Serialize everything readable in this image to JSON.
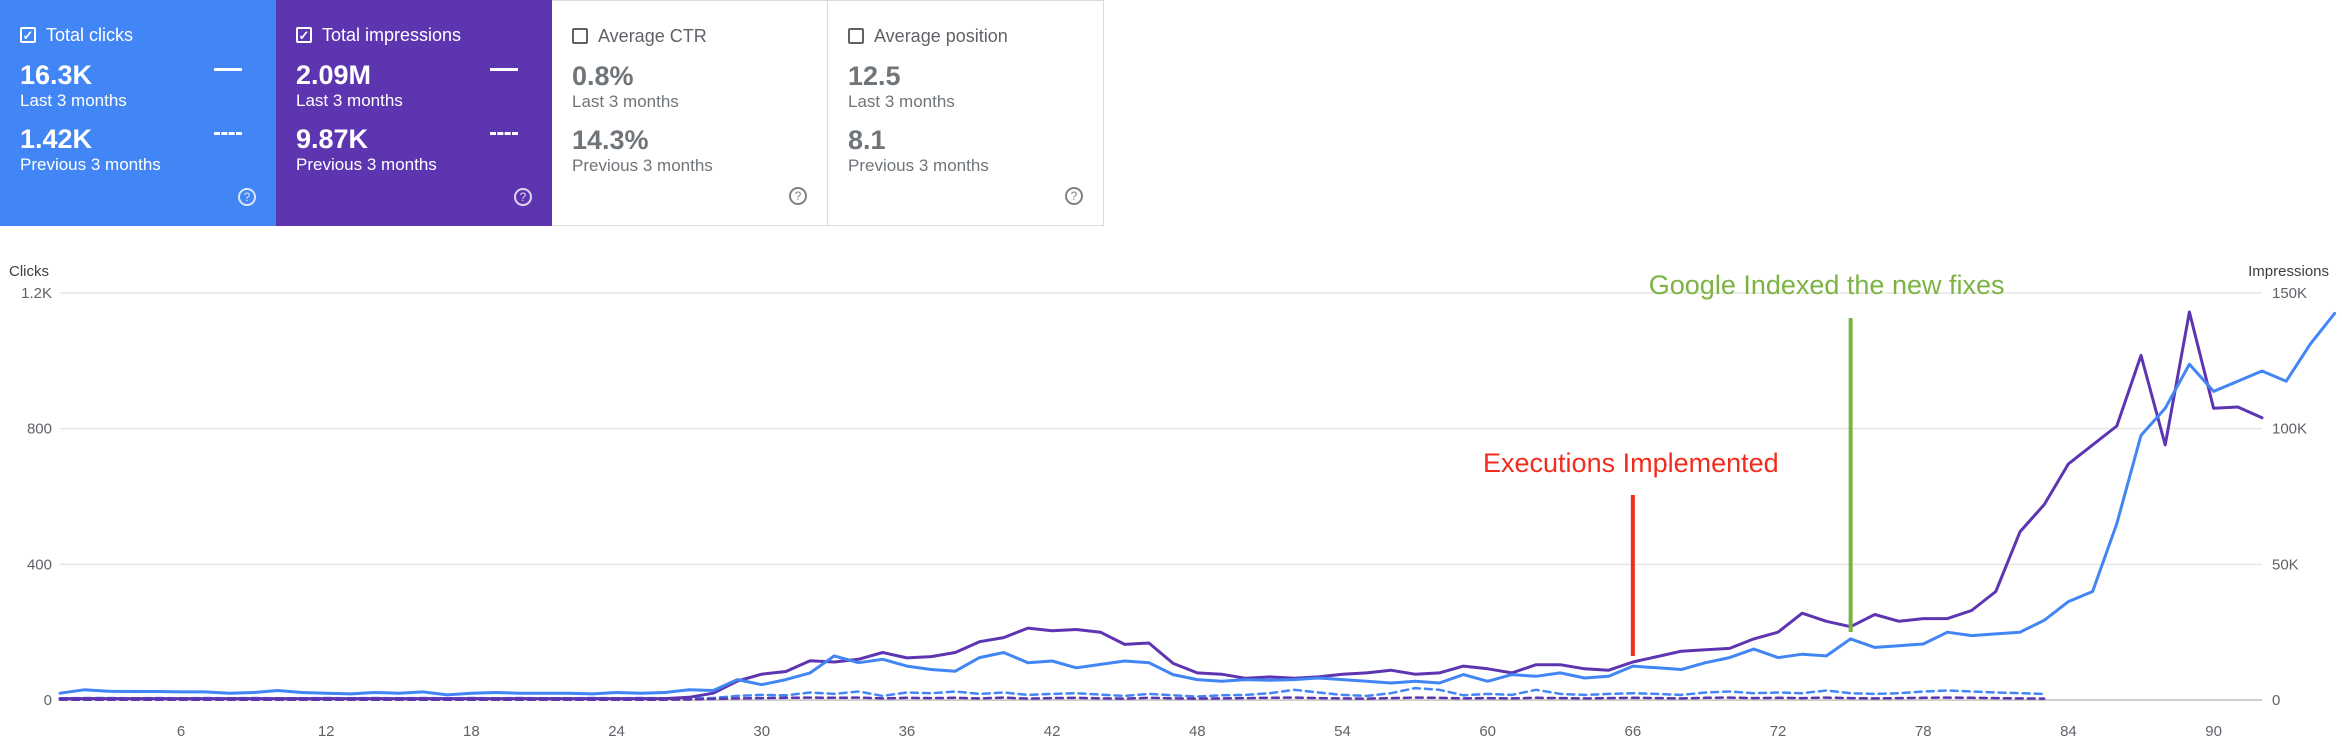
{
  "cards": [
    {
      "label": "Total clicks",
      "checked": true,
      "val1": "16.3K",
      "sub1": "Last 3 months",
      "val2": "1.42K",
      "sub2": "Previous 3 months",
      "color": "#4285f4"
    },
    {
      "label": "Total impressions",
      "checked": true,
      "val1": "2.09M",
      "sub1": "Last 3 months",
      "val2": "9.87K",
      "sub2": "Previous 3 months",
      "color": "#5e35b1"
    },
    {
      "label": "Average CTR",
      "checked": false,
      "val1": "0.8%",
      "sub1": "Last 3 months",
      "val2": "14.3%",
      "sub2": "Previous 3 months"
    },
    {
      "label": "Average position",
      "checked": false,
      "val1": "12.5",
      "sub1": "Last 3 months",
      "val2": "8.1",
      "sub2": "Previous 3 months"
    }
  ],
  "chart_data": {
    "type": "line",
    "left_axis_title": "Clicks",
    "right_axis_title": "Impressions",
    "left_ticks": [
      "0",
      "400",
      "800",
      "1.2K"
    ],
    "right_ticks": [
      "0",
      "50K",
      "100K",
      "150K"
    ],
    "ylim_left": [
      0,
      1200
    ],
    "ylim_right": [
      0,
      150000
    ],
    "x_ticks": [
      "6",
      "12",
      "18",
      "24",
      "30",
      "36",
      "42",
      "48",
      "54",
      "60",
      "66",
      "72",
      "78",
      "84",
      "90"
    ],
    "xlim": [
      1,
      92
    ],
    "grid": true,
    "series": [
      {
        "name": "Total clicks",
        "color": "#4285f4",
        "style": "solid",
        "axis": "left",
        "values": [
          20,
          30,
          26,
          25,
          25,
          24,
          24,
          20,
          22,
          28,
          22,
          20,
          18,
          22,
          20,
          24,
          15,
          20,
          22,
          20,
          20,
          20,
          18,
          22,
          20,
          22,
          30,
          28,
          60,
          45,
          60,
          80,
          130,
          110,
          120,
          100,
          90,
          85,
          125,
          140,
          110,
          115,
          95,
          105,
          115,
          110,
          75,
          60,
          55,
          60,
          58,
          60,
          65,
          60,
          55,
          50,
          55,
          50,
          75,
          55,
          75,
          70,
          80,
          65,
          70,
          100,
          95,
          90,
          110,
          125,
          150,
          125,
          135,
          130,
          180,
          155,
          160,
          165,
          200,
          190,
          195,
          200,
          235,
          290,
          320,
          520,
          780,
          860,
          990,
          910,
          940,
          970,
          940,
          1050,
          1140
        ]
      },
      {
        "name": "Total impressions",
        "color": "#5e35b1",
        "style": "solid",
        "axis": "right",
        "values": [
          500,
          500,
          500,
          500,
          500,
          500,
          500,
          500,
          500,
          500,
          500,
          500,
          500,
          500,
          500,
          500,
          500,
          500,
          500,
          500,
          500,
          500,
          500,
          500,
          500,
          500,
          1000,
          2500,
          7000,
          9500,
          10500,
          14500,
          14000,
          15000,
          17500,
          15500,
          16000,
          17500,
          21500,
          23000,
          26500,
          25500,
          26000,
          25000,
          20500,
          21000,
          13500,
          10000,
          9500,
          8000,
          8500,
          8000,
          8500,
          9500,
          10000,
          11000,
          9500,
          10000,
          12500,
          11500,
          10000,
          13000,
          13000,
          11500,
          11000,
          14000,
          16000,
          18000,
          18500,
          19000,
          22500,
          25000,
          32000,
          29000,
          27000,
          31500,
          29000,
          30000,
          30000,
          33000,
          40000,
          62000,
          72000,
          87000,
          94000,
          101000,
          127000,
          94000,
          143000,
          107500,
          108000,
          104000
        ]
      },
      {
        "name": "Total clicks (previous)",
        "color": "#4285f4",
        "style": "dashed",
        "axis": "left",
        "values": [
          5,
          6,
          6,
          5,
          6,
          5,
          6,
          5,
          6,
          5,
          5,
          6,
          5,
          6,
          5,
          6,
          5,
          6,
          5,
          6,
          5,
          5,
          6,
          5,
          6,
          5,
          5,
          6,
          12,
          15,
          14,
          22,
          18,
          25,
          12,
          22,
          20,
          25,
          18,
          22,
          15,
          18,
          20,
          16,
          12,
          18,
          14,
          10,
          14,
          15,
          20,
          30,
          22,
          15,
          12,
          20,
          35,
          30,
          14,
          18,
          15,
          30,
          18,
          15,
          18,
          20,
          18,
          15,
          22,
          25,
          20,
          22,
          20,
          28,
          20,
          18,
          20,
          25,
          28,
          25,
          22,
          20,
          18
        ]
      },
      {
        "name": "Total impressions (previous)",
        "color": "#5e35b1",
        "style": "dashed",
        "axis": "right",
        "values": [
          100,
          100,
          100,
          100,
          100,
          100,
          100,
          100,
          100,
          100,
          100,
          100,
          100,
          100,
          100,
          100,
          100,
          100,
          100,
          100,
          100,
          100,
          100,
          100,
          100,
          100,
          200,
          400,
          600,
          700,
          800,
          900,
          800,
          900,
          600,
          800,
          700,
          800,
          600,
          900,
          500,
          700,
          800,
          600,
          500,
          800,
          600,
          500,
          600,
          700,
          800,
          900,
          700,
          600,
          500,
          700,
          900,
          800,
          600,
          700,
          600,
          800,
          700,
          600,
          700,
          800,
          700,
          600,
          800,
          900,
          700,
          800,
          700,
          900,
          700,
          600,
          700,
          800,
          900,
          800,
          700,
          600,
          500
        ]
      }
    ],
    "annotations": [
      {
        "text": "Executions Implemented",
        "color": "#f22c1c",
        "x": 66
      },
      {
        "text": "Google Indexed the new fixes",
        "color": "#7cb342",
        "x": 75
      }
    ]
  }
}
